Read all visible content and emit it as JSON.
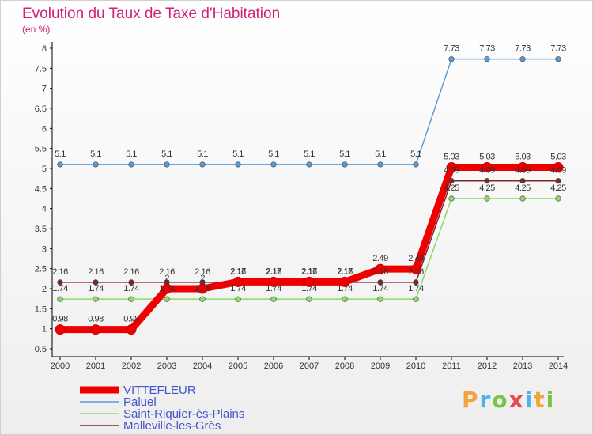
{
  "title": "Evolution du Taux de Taxe d'Habitation",
  "unit_label": "(en %)",
  "brand": "Proxiti",
  "chart_data": {
    "type": "line",
    "title": "Evolution du Taux de Taxe d'Habitation",
    "ylabel": "(en %)",
    "xlabel": "",
    "ylim": [
      0.5,
      8
    ],
    "yticks": [
      "0.5",
      "1",
      "1.5",
      "2",
      "2.5",
      "3",
      "3.5",
      "4",
      "4.5",
      "5",
      "5.5",
      "6",
      "6.5",
      "7",
      "7.5",
      "8"
    ],
    "x": [
      "2000",
      "2001",
      "2002",
      "2003",
      "2004",
      "2005",
      "2006",
      "2007",
      "2008",
      "2009",
      "2010",
      "2011",
      "2012",
      "2013",
      "2014"
    ],
    "series": [
      {
        "name": "Paluel",
        "color": "#5b9bd5",
        "width": 1.5,
        "values": [
          5.1,
          5.1,
          5.1,
          5.1,
          5.1,
          5.1,
          5.1,
          5.1,
          5.1,
          5.1,
          5.1,
          7.73,
          7.73,
          7.73,
          7.73
        ],
        "labels": [
          "5.1",
          "5.1",
          "5.1",
          "5.1",
          "5.1",
          "5.1",
          "5.1",
          "5.1",
          "5.1",
          "5.1",
          "5.1",
          "7.73",
          "7.73",
          "7.73",
          "7.73"
        ]
      },
      {
        "name": "Saint-Riquier-ès-Plains",
        "color": "#8fd86a",
        "width": 1.5,
        "values": [
          1.74,
          1.74,
          1.74,
          1.74,
          1.74,
          1.74,
          1.74,
          1.74,
          1.74,
          1.74,
          1.74,
          4.25,
          4.25,
          4.25,
          4.25
        ],
        "labels": [
          "1.74",
          "1.74",
          "1.74",
          "1.74",
          "1.74",
          "1.74",
          "1.74",
          "1.74",
          "1.74",
          "1.74",
          "1.74",
          "4.25",
          "4.25",
          "4.25",
          "4.25"
        ]
      },
      {
        "name": "Malleville-les-Grès",
        "color": "#7a2a2a",
        "width": 1.5,
        "values": [
          2.16,
          2.16,
          2.16,
          2.16,
          2.16,
          2.16,
          2.16,
          2.16,
          2.16,
          2.16,
          2.16,
          4.69,
          4.69,
          4.69,
          4.69
        ],
        "labels": [
          "2.16",
          "2.16",
          "2.16",
          "2.16",
          "2.16",
          "2.16",
          "2.16",
          "2.16",
          "2.16",
          "2.16",
          "2.16",
          "4.69",
          "4.69",
          "4.69",
          "4.69"
        ]
      },
      {
        "name": "VITTEFLEUR",
        "color": "#ee0000",
        "width": 9,
        "values": [
          0.98,
          0.98,
          0.98,
          2.0,
          2.0,
          2.17,
          2.17,
          2.17,
          2.17,
          2.49,
          2.49,
          5.03,
          5.03,
          5.03,
          5.03
        ],
        "labels": [
          "0.98",
          "0.98",
          "0.98",
          "2",
          "2",
          "2.17",
          "2.17",
          "2.17",
          "2.17",
          "2.49",
          "2.49",
          "5.03",
          "5.03",
          "5.03",
          "5.03"
        ]
      }
    ],
    "legend": [
      "VITTEFLEUR",
      "Paluel",
      "Saint-Riquier-ès-Plains",
      "Malleville-les-Grès"
    ],
    "legend_position": "bottom-left",
    "grid": false
  }
}
